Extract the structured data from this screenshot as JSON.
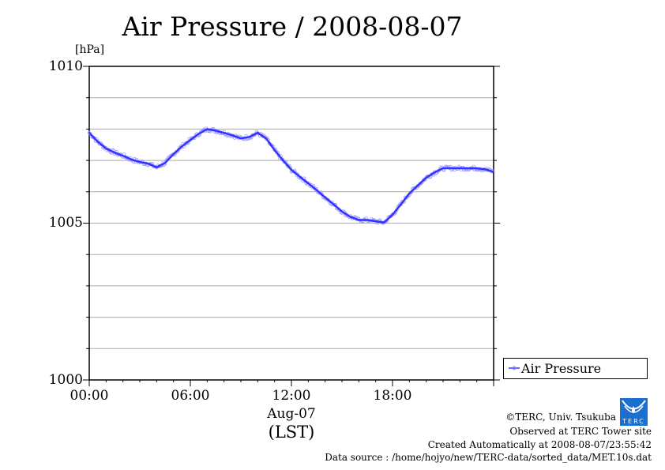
{
  "chart_data": {
    "type": "line",
    "title": "Air Pressure / 2008-08-07",
    "ylabel": "[hPa]",
    "xlabel": "(LST)",
    "x_date_label": "Aug-07",
    "ylim": [
      1000,
      1010
    ],
    "xlim_hours": [
      0,
      24
    ],
    "y_ticks": [
      "1000",
      "1005",
      "1010"
    ],
    "x_ticks": [
      "00:00",
      "06:00",
      "12:00",
      "18:00"
    ],
    "grid": true,
    "legend": {
      "position": "bottom-right, outside",
      "entries": [
        "Air Pressure"
      ]
    },
    "series": [
      {
        "name": "Air Pressure",
        "color": "#3333ff",
        "x_hours": [
          0,
          0.5,
          1,
          1.5,
          2,
          2.5,
          3,
          3.5,
          4,
          4.5,
          5,
          5.5,
          6,
          6.5,
          7,
          7.5,
          8,
          8.5,
          9,
          9.5,
          10,
          10.5,
          11,
          11.5,
          12,
          12.5,
          13,
          13.5,
          14,
          14.5,
          15,
          15.5,
          16,
          16.5,
          17,
          17.5,
          18,
          18.5,
          19,
          19.5,
          20,
          20.5,
          21,
          21.5,
          22,
          22.5,
          23,
          23.5,
          24
        ],
        "values": [
          1007.88,
          1007.6,
          1007.38,
          1007.25,
          1007.15,
          1007.03,
          1006.95,
          1006.9,
          1006.78,
          1006.92,
          1007.2,
          1007.45,
          1007.65,
          1007.85,
          1008.0,
          1007.95,
          1007.88,
          1007.8,
          1007.7,
          1007.75,
          1007.88,
          1007.7,
          1007.33,
          1007.0,
          1006.7,
          1006.48,
          1006.27,
          1006.05,
          1005.82,
          1005.6,
          1005.37,
          1005.2,
          1005.1,
          1005.1,
          1005.06,
          1005.02,
          1005.27,
          1005.6,
          1005.95,
          1006.2,
          1006.45,
          1006.62,
          1006.75,
          1006.75,
          1006.75,
          1006.75,
          1006.75,
          1006.72,
          1006.63
        ]
      }
    ]
  },
  "footer": {
    "copyright": "©TERC, Univ. Tsukuba",
    "observed": "Observed at TERC Tower site",
    "created": "Created Automatically at 2008-08-07/23:55:42",
    "source": "Data source : /home/hojyo/new/TERC-data/sorted_data/MET.10s.dat",
    "logo_text": "TERC"
  }
}
